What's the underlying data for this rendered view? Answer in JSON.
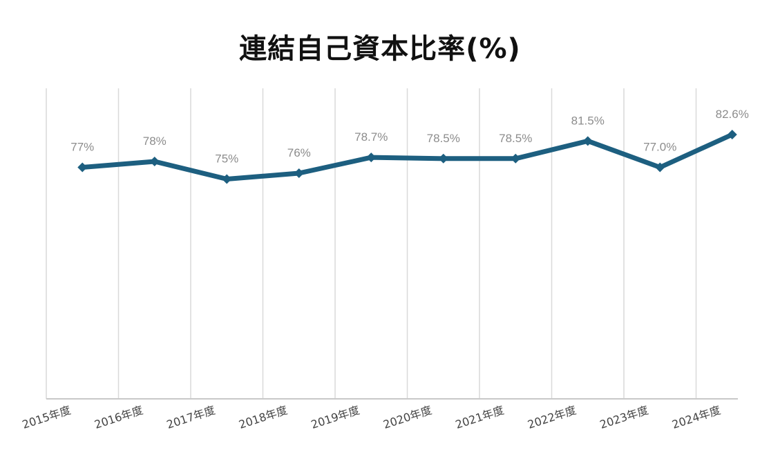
{
  "chart_data": {
    "type": "line",
    "title": "連結自己資本比率(%)",
    "categories": [
      "2015年度",
      "2016年度",
      "2017年度",
      "2018年度",
      "2019年度",
      "2020年度",
      "2021年度",
      "2022年度",
      "2023年度",
      "2024年度"
    ],
    "series": [
      {
        "values": [
          77,
          78,
          75,
          76,
          78.7,
          78.5,
          78.5,
          81.5,
          77.0,
          82.6
        ],
        "labels": [
          "77%",
          "78%",
          "75%",
          "76%",
          "78.7%",
          "78.5%",
          "78.5%",
          "81.5%",
          "77.0%",
          "82.6%"
        ],
        "color": "#1d5f80"
      }
    ],
    "grid": true,
    "legend": "none"
  }
}
